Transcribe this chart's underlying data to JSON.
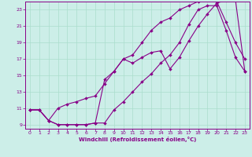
{
  "bg_color": "#cceee8",
  "line_color": "#880088",
  "grid_color": "#aaddcc",
  "xlim": [
    -0.5,
    23.5
  ],
  "ylim": [
    8.5,
    24.0
  ],
  "xticks": [
    0,
    1,
    2,
    3,
    4,
    5,
    6,
    7,
    8,
    9,
    10,
    11,
    12,
    13,
    14,
    15,
    16,
    17,
    18,
    19,
    20,
    21,
    22,
    23
  ],
  "yticks": [
    9,
    11,
    13,
    15,
    17,
    19,
    21,
    23
  ],
  "xlabel": "Windchill (Refroidissement éolien,°C)",
  "line1_x": [
    0,
    1,
    2,
    3,
    4,
    5,
    6,
    7,
    8,
    9,
    10,
    11,
    12,
    13,
    14,
    15,
    16,
    17,
    18,
    19,
    20,
    21,
    22,
    23
  ],
  "line1_y": [
    10.8,
    10.8,
    9.5,
    9.0,
    9.0,
    9.0,
    9.0,
    9.2,
    9.2,
    10.8,
    11.8,
    13.0,
    14.2,
    15.2,
    16.5,
    17.5,
    19.0,
    21.2,
    23.0,
    23.5,
    23.5,
    20.5,
    17.2,
    15.5
  ],
  "line2_x": [
    0,
    1,
    2,
    3,
    4,
    5,
    6,
    7,
    8,
    9,
    10,
    11,
    12,
    13,
    14,
    15,
    16,
    17,
    18,
    19,
    20,
    21,
    22,
    23
  ],
  "line2_y": [
    10.8,
    10.8,
    9.5,
    9.0,
    9.0,
    9.0,
    9.0,
    9.2,
    14.5,
    15.5,
    17.0,
    17.5,
    19.0,
    20.5,
    21.5,
    22.0,
    23.0,
    23.5,
    24.0,
    24.2,
    24.0,
    21.5,
    19.0,
    17.0
  ],
  "line3_x": [
    0,
    1,
    2,
    3,
    4,
    5,
    6,
    7,
    8,
    9,
    10,
    11,
    12,
    13,
    14,
    15,
    16,
    17,
    18,
    19,
    20,
    21,
    22,
    23
  ],
  "line3_y": [
    10.8,
    10.8,
    9.5,
    11.0,
    11.5,
    11.8,
    12.2,
    12.5,
    14.0,
    15.5,
    17.0,
    16.5,
    17.2,
    17.8,
    18.0,
    15.8,
    17.2,
    19.2,
    21.0,
    22.5,
    23.8,
    24.2,
    24.2,
    15.5
  ]
}
